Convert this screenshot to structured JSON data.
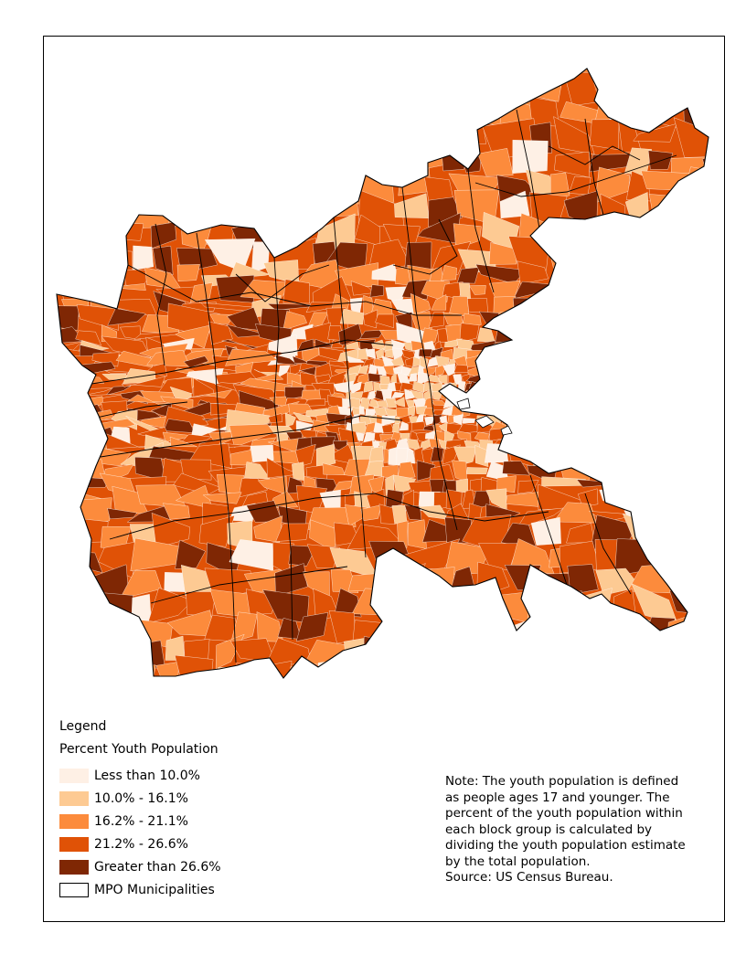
{
  "legend": {
    "title": "Legend",
    "subtitle": "Percent Youth Population",
    "items": [
      {
        "label": "Less than 10.0%",
        "color": "#fef0e5"
      },
      {
        "label": "10.0% - 16.1%",
        "color": "#fdca93"
      },
      {
        "label": "16.2% - 21.1%",
        "color": "#fc8b3c"
      },
      {
        "label": "21.2% - 26.6%",
        "color": "#e05206"
      },
      {
        "label": "Greater than 26.6%",
        "color": "#7f2704"
      }
    ],
    "outline_item": {
      "label": "MPO Municipalities",
      "color": "#ffffff"
    }
  },
  "note": {
    "lines": [
      "Note: The youth population is defined",
      "as people ages 17 and younger. The",
      "percent of the youth population within",
      "each block group is calculated by",
      "dividing the youth population estimate",
      "by the total population."
    ],
    "source": "Source: US Census Bureau."
  }
}
